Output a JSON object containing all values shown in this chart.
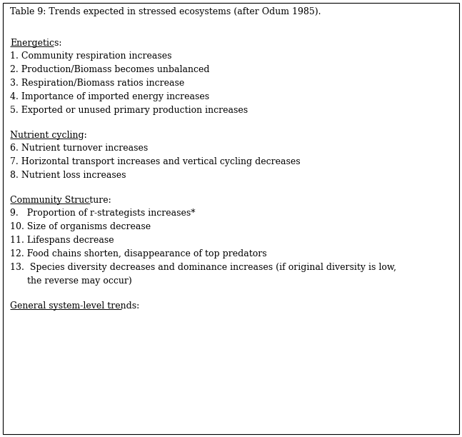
{
  "title": "Table 9: Trends expected in stressed ecosystems (after Odum 1985).",
  "sections": [
    {
      "header": "Energetics:",
      "items": [
        "1. Community respiration increases",
        "2. Production/Biomass becomes unbalanced",
        "3. Respiration/Biomass ratios increase",
        "4. Importance of imported energy increases",
        "5. Exported or unused primary production increases"
      ]
    },
    {
      "header": "Nutrient cycling:",
      "items": [
        "6. Nutrient turnover increases",
        "7. Horizontal transport increases and vertical cycling decreases",
        "8. Nutrient loss increases"
      ]
    },
    {
      "header": "Community Structure:",
      "items": [
        "9.   Proportion of r-strategists increases*",
        "10. Size of organisms decrease",
        "11. Lifespans decrease",
        "12. Food chains shorten, disappearance of top predators",
        "13.  Species diversity decreases and dominance increases (if original diversity is low,",
        "      the reverse may occur)"
      ]
    },
    {
      "header": "General system-level trends:",
      "items": []
    }
  ],
  "bg_color": "#ffffff",
  "border_color": "#000000",
  "text_color": "#000000",
  "font_size": 9.0,
  "title_font_size": 9.0,
  "header_font_size": 9.0,
  "figwidth": 6.47,
  "figheight": 6.12,
  "dpi": 100
}
